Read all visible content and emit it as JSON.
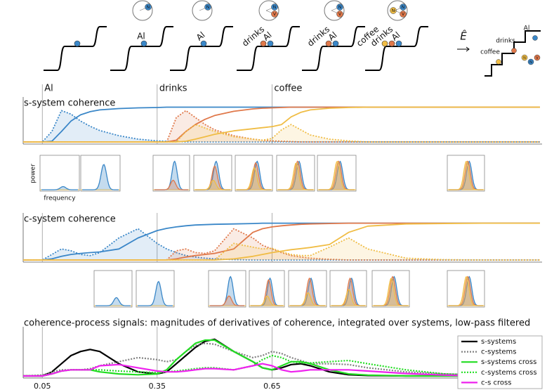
{
  "schematic": {
    "stages": [
      {
        "words": [
          "Al"
        ],
        "nodes": [
          "N"
        ]
      },
      {
        "words": [
          "Al"
        ],
        "nodes": [
          "N"
        ]
      },
      {
        "words": [
          "drinks",
          "Al"
        ],
        "nodes": [
          "N",
          "V"
        ]
      },
      {
        "words": [
          "drinks",
          "Al"
        ],
        "nodes": [
          "N",
          "V"
        ]
      },
      {
        "words": [
          "coffee",
          "drinks",
          "Al"
        ],
        "nodes": [
          "N",
          "N",
          "V"
        ]
      }
    ],
    "final": {
      "operator": "Ê",
      "words": [
        "coffee",
        "drinks",
        "Al"
      ],
      "nodes": [
        "N",
        "N",
        "V"
      ]
    }
  },
  "insets": {
    "y_label": "power",
    "x_label": "frequency",
    "s": [
      [
        0.1
      ],
      [
        0.8
      ],
      [
        0.9,
        0.3
      ],
      [
        0.9,
        0.75,
        0.3
      ],
      [
        0.9,
        0.85,
        0.7
      ],
      [
        0.9,
        0.9,
        0.85
      ],
      [
        0.9,
        0.9,
        0.9
      ],
      [
        0.9,
        0.9,
        0.9
      ]
    ],
    "c": [
      [
        0.25
      ],
      [
        0.75
      ],
      [
        0.9,
        0.3
      ],
      [
        0.85,
        0.8,
        0.3
      ],
      [
        0.85,
        0.85,
        0.4
      ],
      [
        0.85,
        0.85,
        0.5
      ],
      [
        0.9,
        0.9,
        0.85
      ],
      [
        0.9,
        0.9,
        0.9
      ]
    ]
  },
  "chart_data": [
    {
      "type": "line",
      "title": "s-system coherence",
      "x": [
        0,
        0.05,
        0.075,
        0.1,
        0.125,
        0.15,
        0.175,
        0.2,
        0.25,
        0.3,
        0.35,
        0.375,
        0.4,
        0.425,
        0.45,
        0.475,
        0.5,
        0.55,
        0.6,
        0.625,
        0.65,
        0.675,
        0.7,
        0.725,
        0.75,
        0.8,
        0.85,
        0.9,
        1.0,
        1.1,
        1.2,
        1.35
      ],
      "xlim": [
        0,
        1.35
      ],
      "ylim": [
        0,
        1.05
      ],
      "annotations": [
        {
          "text": "Al",
          "x": 0.05
        },
        {
          "text": "drinks",
          "x": 0.35
        },
        {
          "text": "coffee",
          "x": 0.65
        }
      ],
      "series": [
        {
          "color": "#3a87c8",
          "style": "solid",
          "values": [
            0,
            0,
            0.02,
            0.3,
            0.6,
            0.78,
            0.87,
            0.92,
            0.96,
            0.98,
            0.99,
            1,
            1,
            1,
            1,
            1,
            1,
            1,
            1,
            1,
            1,
            1,
            1,
            1,
            1,
            1,
            1,
            1,
            1,
            1,
            1,
            1
          ]
        },
        {
          "color": "#3a87c8",
          "style": "dotted",
          "area": true,
          "values": [
            0,
            0,
            0.3,
            0.9,
            0.8,
            0.6,
            0.45,
            0.33,
            0.18,
            0.08,
            0.03,
            0.02,
            0.01,
            0,
            0,
            0,
            0,
            0,
            0,
            0,
            0,
            0,
            0,
            0,
            0,
            0,
            0,
            0,
            0,
            0,
            0,
            0
          ]
        },
        {
          "color": "#e0784a",
          "style": "solid",
          "values": [
            0,
            0,
            0,
            0,
            0,
            0,
            0,
            0,
            0,
            0,
            0,
            0,
            0.05,
            0.3,
            0.5,
            0.65,
            0.76,
            0.88,
            0.95,
            0.97,
            0.98,
            0.99,
            1,
            1,
            1,
            1,
            1,
            1,
            1,
            1,
            1,
            1
          ]
        },
        {
          "color": "#e0784a",
          "style": "dotted",
          "area": true,
          "values": [
            0,
            0,
            0,
            0,
            0,
            0,
            0,
            0,
            0,
            0,
            0,
            0,
            0.7,
            0.9,
            0.7,
            0.5,
            0.35,
            0.18,
            0.08,
            0.05,
            0.03,
            0.02,
            0.01,
            0,
            0,
            0,
            0,
            0,
            0,
            0,
            0,
            0
          ]
        },
        {
          "color": "#f0bd45",
          "style": "solid",
          "values": [
            0,
            0,
            0,
            0,
            0,
            0,
            0,
            0,
            0,
            0,
            0,
            0,
            0,
            0.02,
            0.08,
            0.15,
            0.22,
            0.32,
            0.38,
            0.41,
            0.44,
            0.5,
            0.72,
            0.85,
            0.92,
            0.97,
            0.99,
            1,
            1,
            1,
            1,
            1
          ]
        },
        {
          "color": "#f0bd45",
          "style": "dotted",
          "area": true,
          "values": [
            0,
            0,
            0,
            0,
            0,
            0,
            0,
            0,
            0,
            0,
            0,
            0,
            0,
            0.3,
            0.5,
            0.4,
            0.3,
            0.15,
            0.08,
            0.05,
            0.1,
            0.35,
            0.5,
            0.35,
            0.2,
            0.08,
            0.03,
            0,
            0,
            0,
            0,
            0
          ]
        }
      ]
    },
    {
      "type": "line",
      "title": "c-system coherence",
      "x": [
        0,
        0.05,
        0.075,
        0.1,
        0.125,
        0.15,
        0.175,
        0.2,
        0.25,
        0.3,
        0.35,
        0.375,
        0.4,
        0.425,
        0.45,
        0.475,
        0.5,
        0.55,
        0.6,
        0.625,
        0.65,
        0.675,
        0.7,
        0.725,
        0.75,
        0.8,
        0.85,
        0.9,
        1.0,
        1.1,
        1.2,
        1.35
      ],
      "xlim": [
        0,
        1.35
      ],
      "ylim": [
        0,
        1.05
      ],
      "vlines": [
        0.05,
        0.35,
        0.65
      ],
      "series": [
        {
          "color": "#3a87c8",
          "style": "solid",
          "values": [
            0,
            0,
            0.03,
            0.1,
            0.15,
            0.18,
            0.2,
            0.22,
            0.3,
            0.6,
            0.8,
            0.86,
            0.9,
            0.93,
            0.95,
            0.96,
            0.97,
            0.98,
            0.99,
            1,
            1,
            1,
            1,
            1,
            1,
            1,
            1,
            1,
            1,
            1,
            1,
            1
          ]
        },
        {
          "color": "#3a87c8",
          "style": "dotted",
          "area": true,
          "values": [
            0,
            0,
            0.15,
            0.3,
            0.25,
            0.15,
            0.12,
            0.2,
            0.6,
            0.85,
            0.45,
            0.3,
            0.2,
            0.12,
            0.08,
            0.05,
            0.03,
            0.01,
            0,
            0,
            0,
            0,
            0,
            0,
            0,
            0,
            0,
            0,
            0,
            0,
            0,
            0
          ]
        },
        {
          "color": "#e0784a",
          "style": "solid",
          "values": [
            0,
            0,
            0,
            0,
            0,
            0,
            0,
            0,
            0,
            0,
            0,
            0,
            0.03,
            0.08,
            0.12,
            0.15,
            0.18,
            0.3,
            0.75,
            0.85,
            0.9,
            0.93,
            0.95,
            0.97,
            0.98,
            0.99,
            1,
            1,
            1,
            1,
            1,
            1
          ]
        },
        {
          "color": "#e0784a",
          "style": "dotted",
          "area": true,
          "values": [
            0,
            0,
            0,
            0,
            0,
            0,
            0,
            0,
            0,
            0,
            0,
            0,
            0.25,
            0.3,
            0.2,
            0.18,
            0.25,
            0.85,
            0.6,
            0.4,
            0.3,
            0.2,
            0.12,
            0.08,
            0.05,
            0.02,
            0,
            0,
            0,
            0,
            0,
            0
          ]
        },
        {
          "color": "#f0bd45",
          "style": "solid",
          "values": [
            0,
            0,
            0,
            0,
            0,
            0,
            0,
            0,
            0,
            0,
            0,
            0,
            0,
            0,
            0,
            0,
            0,
            0.03,
            0.1,
            0.15,
            0.2,
            0.24,
            0.28,
            0.31,
            0.34,
            0.42,
            0.75,
            0.92,
            0.98,
            0.99,
            1,
            1
          ]
        },
        {
          "color": "#f0bd45",
          "style": "dotted",
          "area": true,
          "values": [
            0,
            0,
            0,
            0,
            0,
            0,
            0,
            0,
            0,
            0,
            0,
            0,
            0,
            0,
            0,
            0,
            0,
            0.45,
            0.35,
            0.3,
            0.32,
            0.22,
            0.15,
            0.12,
            0.12,
            0.35,
            0.6,
            0.3,
            0.05,
            0.01,
            0,
            0
          ]
        }
      ]
    },
    {
      "type": "line",
      "title": "coherence-process signals: magnitudes of derivatives of coherence, integrated over systems, low-pass filtered",
      "x": [
        0,
        0.05,
        0.075,
        0.1,
        0.125,
        0.15,
        0.175,
        0.2,
        0.25,
        0.3,
        0.35,
        0.375,
        0.4,
        0.425,
        0.45,
        0.475,
        0.5,
        0.55,
        0.6,
        0.625,
        0.65,
        0.675,
        0.7,
        0.725,
        0.75,
        0.8,
        0.85,
        0.9,
        1.0,
        1.1,
        1.2,
        1.35
      ],
      "xlim": [
        0,
        1.35
      ],
      "ylim": [
        0,
        1
      ],
      "xticks": [
        0.05,
        0.35,
        0.65
      ],
      "legend": "upper right",
      "series": [
        {
          "name": "s-systems",
          "color": "#000000",
          "style": "solid",
          "values": [
            0,
            0,
            0.1,
            0.3,
            0.5,
            0.6,
            0.65,
            0.6,
            0.3,
            0.1,
            0.05,
            0.1,
            0.3,
            0.5,
            0.7,
            0.85,
            0.9,
            0.6,
            0.35,
            0.2,
            0.15,
            0.2,
            0.28,
            0.3,
            0.25,
            0.1,
            0.03,
            0.01,
            0,
            0,
            0,
            0
          ]
        },
        {
          "name": "c-systems",
          "color": "#808080",
          "style": "dotted",
          "values": [
            0,
            0.02,
            0.1,
            0.15,
            0.15,
            0.15,
            0.18,
            0.25,
            0.35,
            0.45,
            0.4,
            0.35,
            0.4,
            0.6,
            0.75,
            0.8,
            0.78,
            0.6,
            0.45,
            0.5,
            0.6,
            0.55,
            0.45,
            0.38,
            0.3,
            0.3,
            0.28,
            0.2,
            0.1,
            0.05,
            0.02,
            0
          ]
        },
        {
          "name": "s-systems cross",
          "color": "#22dd22",
          "style": "solid",
          "values": [
            0,
            0,
            0.05,
            0.12,
            0.15,
            0.15,
            0.15,
            0.1,
            0.05,
            0.03,
            0.05,
            0.15,
            0.4,
            0.6,
            0.8,
            0.88,
            0.88,
            0.6,
            0.35,
            0.2,
            0.15,
            0.25,
            0.35,
            0.35,
            0.3,
            0.15,
            0.05,
            0.02,
            0,
            0,
            0,
            0
          ]
        },
        {
          "name": "c-systems cross",
          "color": "#22dd22",
          "style": "dotted",
          "values": [
            0,
            0,
            0.05,
            0.12,
            0.15,
            0.15,
            0.15,
            0.15,
            0.12,
            0.1,
            0.08,
            0.1,
            0.12,
            0.15,
            0.18,
            0.2,
            0.2,
            0.15,
            0.25,
            0.4,
            0.5,
            0.45,
            0.35,
            0.32,
            0.32,
            0.35,
            0.38,
            0.3,
            0.15,
            0.05,
            0.02,
            0
          ]
        },
        {
          "name": "c-s cross",
          "color": "#ee22ee",
          "style": "solid",
          "values": [
            0,
            0,
            0.05,
            0.12,
            0.15,
            0.15,
            0.15,
            0.25,
            0.28,
            0.2,
            0.12,
            0.1,
            0.1,
            0.12,
            0.15,
            0.18,
            0.18,
            0.15,
            0.25,
            0.3,
            0.25,
            0.15,
            0.1,
            0.12,
            0.15,
            0.15,
            0.15,
            0.12,
            0.06,
            0.02,
            0,
            0
          ]
        }
      ]
    }
  ]
}
